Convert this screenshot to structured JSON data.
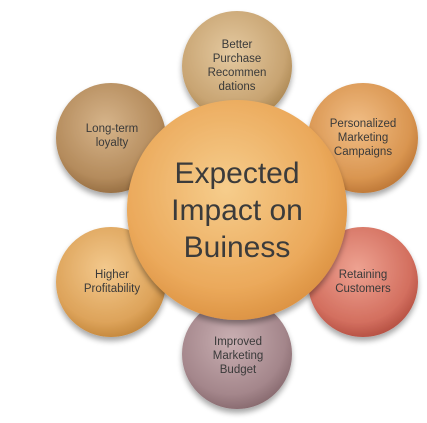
{
  "center": {
    "label": "Expected\nImpact on\nBuiness",
    "color": "#E9A657"
  },
  "satellites": [
    {
      "label": "Better\nPurchase\nRecommen\ndations",
      "color": "#C8A472"
    },
    {
      "label": "Personalized\nMarketing\nCampaigns",
      "color": "#D99550"
    },
    {
      "label": "Retaining\nCustomers",
      "color": "#D36F5F"
    },
    {
      "label": "Improved\nMarketing\nBudget",
      "color": "#A4868B"
    },
    {
      "label": "Higher\nProfitability",
      "color": "#DDA35A"
    },
    {
      "label": "Long-term\nloyalty",
      "color": "#B48B5C"
    }
  ]
}
